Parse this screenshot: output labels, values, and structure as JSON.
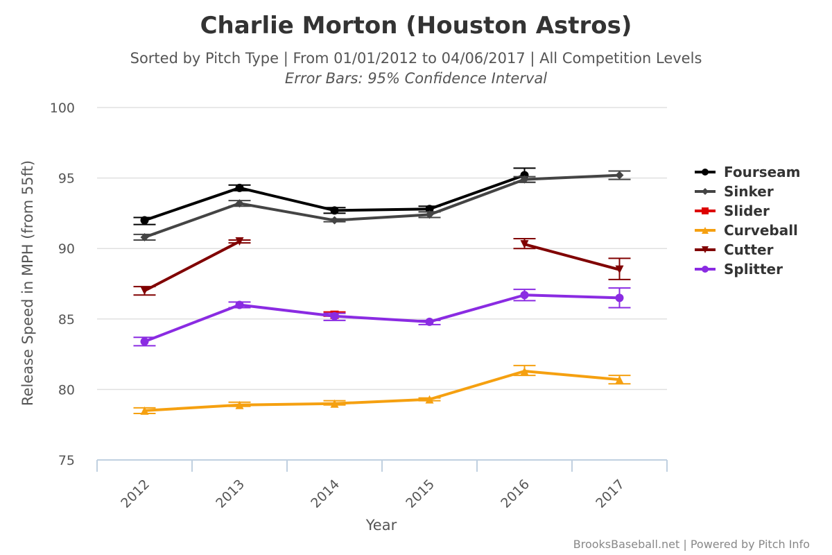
{
  "chart_data": {
    "type": "line",
    "title": "Charlie Morton (Houston Astros)",
    "subtitle": "Sorted by Pitch Type | From 01/01/2012 to 04/06/2017 | All Competition Levels",
    "subtitle2": "Error Bars: 95% Confidence Interval",
    "xlabel": "Year",
    "ylabel": "Release Speed in MPH (from 55ft)",
    "categories": [
      "2012",
      "2013",
      "2014",
      "2015",
      "2016",
      "2017"
    ],
    "ylim": [
      75,
      100
    ],
    "yticks": [
      75,
      80,
      85,
      90,
      95,
      100
    ],
    "legend_position": "right",
    "credits": "BrooksBaseball.net | Powered by Pitch Info",
    "series": [
      {
        "name": "Fourseam",
        "color": "#000000",
        "marker": "circle",
        "values": [
          92.0,
          94.3,
          92.7,
          92.8,
          95.2,
          null
        ],
        "err_low": [
          91.7,
          94.1,
          92.5,
          92.6,
          94.7,
          null
        ],
        "err_high": [
          92.2,
          94.5,
          92.9,
          93.0,
          95.7,
          null
        ]
      },
      {
        "name": "Sinker",
        "color": "#444444",
        "marker": "diamond",
        "values": [
          90.8,
          93.2,
          92.0,
          92.4,
          94.9,
          95.2
        ],
        "err_low": [
          90.6,
          93.0,
          91.9,
          92.2,
          94.7,
          94.9
        ],
        "err_high": [
          91.0,
          93.4,
          92.1,
          92.6,
          95.1,
          95.5
        ]
      },
      {
        "name": "Slider",
        "color": "#dd0000",
        "marker": "square",
        "values": [
          null,
          null,
          85.3,
          null,
          null,
          null
        ],
        "err_low": [
          null,
          null,
          85.2,
          null,
          null,
          null
        ],
        "err_high": [
          null,
          null,
          85.5,
          null,
          null,
          null
        ]
      },
      {
        "name": "Curveball",
        "color": "#f5a010",
        "marker": "triangle",
        "values": [
          78.5,
          78.9,
          79.0,
          79.3,
          81.3,
          80.7
        ],
        "err_low": [
          78.3,
          78.8,
          78.9,
          79.2,
          81.0,
          80.4
        ],
        "err_high": [
          78.7,
          79.1,
          79.2,
          79.4,
          81.7,
          81.0
        ]
      },
      {
        "name": "Cutter",
        "color": "#800000",
        "marker": "triangle-down",
        "values": [
          87.0,
          90.5,
          null,
          null,
          90.3,
          88.5
        ],
        "err_low": [
          86.7,
          90.4,
          null,
          null,
          90.0,
          87.8
        ],
        "err_high": [
          87.3,
          90.6,
          null,
          null,
          90.7,
          89.3
        ]
      },
      {
        "name": "Splitter",
        "color": "#8a2be2",
        "marker": "circle",
        "values": [
          83.4,
          86.0,
          85.2,
          84.8,
          86.7,
          86.5
        ],
        "err_low": [
          83.1,
          85.8,
          84.9,
          84.6,
          86.3,
          85.8
        ],
        "err_high": [
          83.7,
          86.2,
          85.4,
          84.9,
          87.1,
          87.2
        ]
      }
    ]
  }
}
